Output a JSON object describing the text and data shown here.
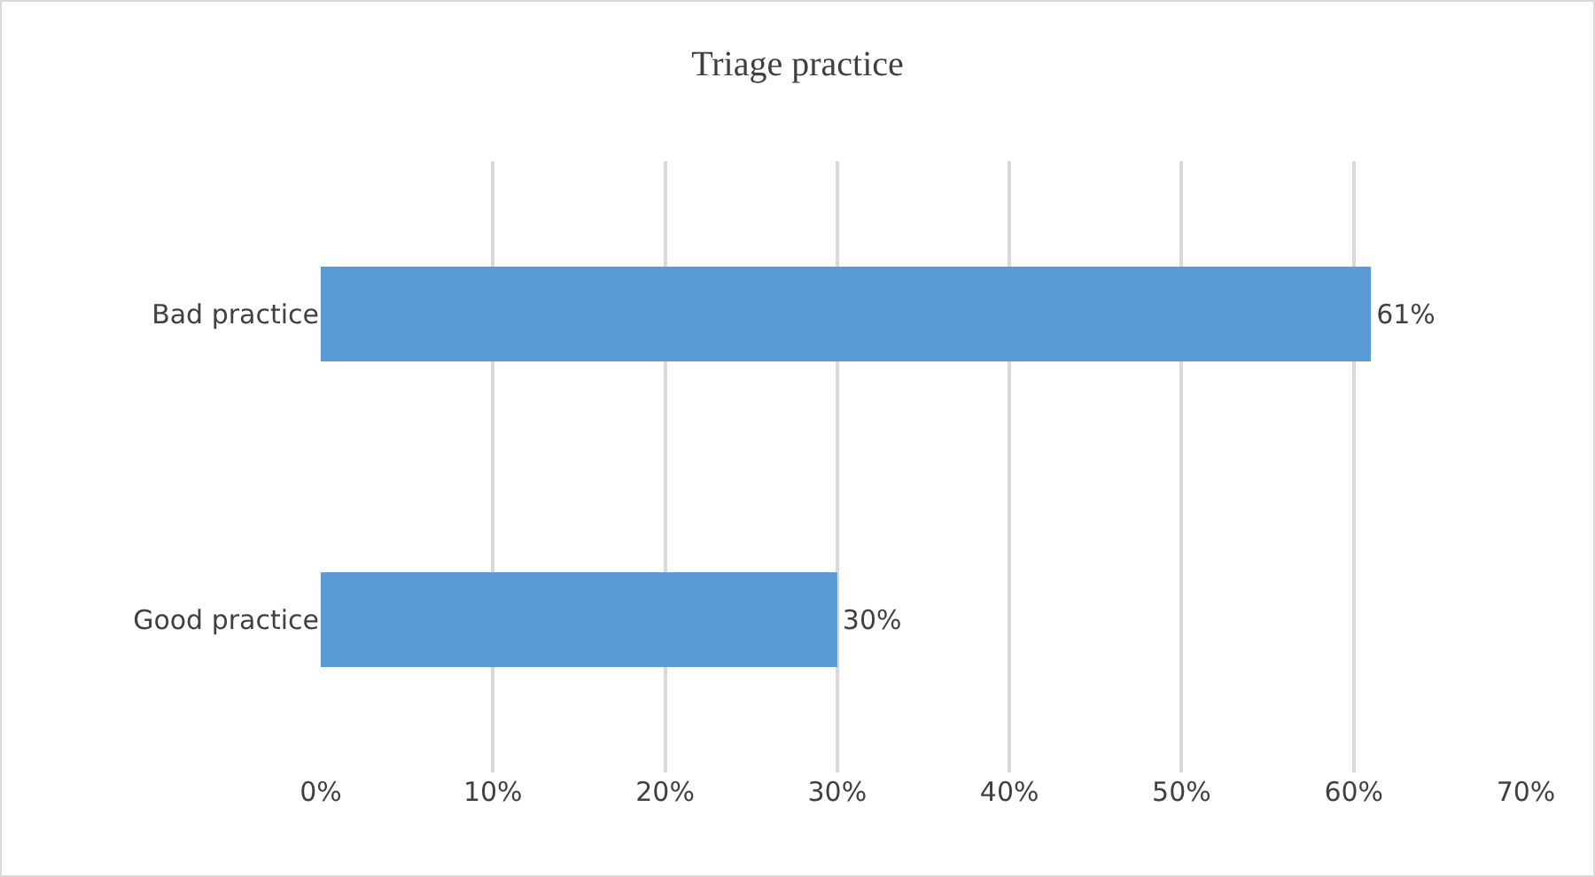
{
  "chart_data": {
    "type": "bar",
    "orientation": "horizontal",
    "title": "Triage practice",
    "categories": [
      "Bad practice",
      "Good practice"
    ],
    "values": [
      61,
      30
    ],
    "value_labels": [
      "61%",
      "30%"
    ],
    "color": "#5b9bd5",
    "xlim": [
      0,
      70
    ],
    "xticks": [
      {
        "value": 0,
        "label": "0%"
      },
      {
        "value": 10,
        "label": "10%"
      },
      {
        "value": 20,
        "label": "20%"
      },
      {
        "value": 30,
        "label": "30%"
      },
      {
        "value": 40,
        "label": "40%"
      },
      {
        "value": 50,
        "label": "50%"
      },
      {
        "value": 60,
        "label": "60%"
      },
      {
        "value": 70,
        "label": "70%"
      }
    ],
    "grid": "x"
  }
}
